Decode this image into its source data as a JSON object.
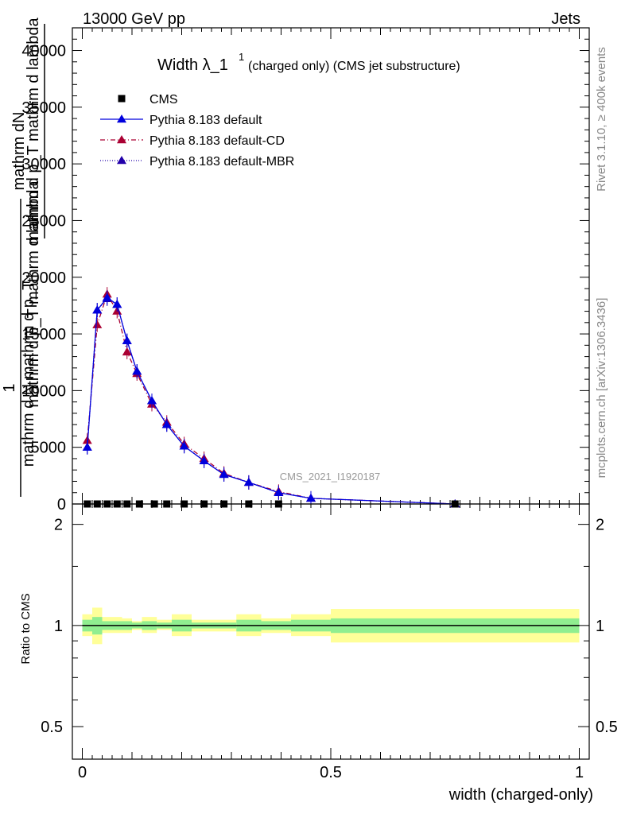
{
  "header": {
    "energy_label": "13000 GeV pp",
    "category_label": "Jets",
    "analysis_id": "CMS_2021_I1920187",
    "side_label_top": "Rivet 3.1.10, ≥ 400k events",
    "side_label_bottom": "mcplots.cern.ch [arXiv:1306.3436]"
  },
  "main_plot": {
    "title_main": "Width λ_1",
    "title_sup": "1",
    "title_sub": "(charged only) (CMS jet substructure)",
    "ylabel_line1": "mathrm dN",
    "ylabel_line2": "mathrm d p_T mathrm d lambda",
    "ylabel_line3": "1",
    "ylabel_line4": "mathrm d N mathrm d p_T",
    "ylabel_line5": "mathrm d p_T mathrm d lambda"
  },
  "legend": [
    {
      "label": "CMS",
      "color": "#000000",
      "marker": "square",
      "line": "none"
    },
    {
      "label": "Pythia 8.183 default",
      "color": "#0000dd",
      "marker": "triangle",
      "line": "solid"
    },
    {
      "label": "Pythia 8.183 default-CD",
      "color": "#aa0033",
      "marker": "triangle",
      "line": "dashdot"
    },
    {
      "label": "Pythia 8.183 default-MBR",
      "color": "#2200aa",
      "marker": "triangle",
      "line": "dotted"
    }
  ],
  "ratio_plot": {
    "ylabel": "Ratio to CMS",
    "xlabel": "width (charged-only)"
  },
  "chart_data": [
    {
      "type": "line",
      "title": "Width λ_1^1 (charged only) (CMS jet substructure)",
      "xlabel": "width (charged-only)",
      "ylabel": "1/(dN/dpT) d²N/(dpT dλ)",
      "xlim": [
        -0.02,
        1.02
      ],
      "ylim": [
        0,
        42000
      ],
      "x_ticks": [
        0,
        0.5,
        1
      ],
      "x_tick_labels": [
        "0",
        "0.5",
        "1"
      ],
      "y_ticks": [
        0,
        5000,
        10000,
        15000,
        20000,
        25000,
        30000,
        35000,
        40000
      ],
      "y_tick_labels": [
        "0",
        "5000",
        "10000",
        "15000",
        "20000",
        "25000",
        "30000",
        "35000",
        "40000"
      ],
      "series": [
        {
          "name": "CMS",
          "x": [
            0.01,
            0.03,
            0.05,
            0.07,
            0.09,
            0.115,
            0.145,
            0.17,
            0.205,
            0.245,
            0.285,
            0.335,
            0.395,
            0.75
          ],
          "values": [
            0,
            0,
            0,
            0,
            0,
            0,
            0,
            0,
            0,
            0,
            0,
            0,
            0,
            0
          ]
        },
        {
          "name": "Pythia 8.183 default",
          "x": [
            0.01,
            0.03,
            0.05,
            0.07,
            0.09,
            0.11,
            0.14,
            0.17,
            0.205,
            0.245,
            0.285,
            0.335,
            0.395,
            0.46,
            0.75
          ],
          "values": [
            5000,
            17100,
            18200,
            17600,
            14400,
            11700,
            9100,
            7000,
            5100,
            3800,
            2600,
            1900,
            1000,
            500,
            0
          ]
        },
        {
          "name": "Pythia 8.183 default-CD",
          "x": [
            0.01,
            0.03,
            0.05,
            0.07,
            0.09,
            0.11,
            0.14,
            0.17,
            0.205,
            0.245,
            0.285,
            0.335,
            0.395,
            0.46,
            0.75
          ],
          "values": [
            5600,
            15800,
            18500,
            17000,
            13400,
            11500,
            8800,
            7200,
            5300,
            4000,
            2700,
            1900,
            1100,
            500,
            0
          ]
        },
        {
          "name": "Pythia 8.183 default-MBR",
          "x": [
            0.01,
            0.03,
            0.05,
            0.07,
            0.09,
            0.11,
            0.14,
            0.17,
            0.205,
            0.245,
            0.285,
            0.335,
            0.395,
            0.46,
            0.75
          ],
          "values": [
            5000,
            17100,
            18100,
            17600,
            14400,
            11700,
            9100,
            7000,
            5100,
            3800,
            2600,
            1900,
            1000,
            500,
            0
          ]
        }
      ]
    },
    {
      "type": "area",
      "title": "",
      "xlabel": "width (charged-only)",
      "ylabel": "Ratio to CMS",
      "xlim": [
        -0.02,
        1.02
      ],
      "ylim": [
        0.4,
        2.3
      ],
      "y_scale": "log",
      "x_ticks": [
        0,
        0.5,
        1
      ],
      "x_tick_labels": [
        "0",
        "0.5",
        "1"
      ],
      "y_ticks": [
        0.5,
        1,
        2
      ],
      "y_tick_labels": [
        "0.5",
        "1",
        "2"
      ],
      "bins": [
        {
          "lo": 0.0,
          "hi": 0.02,
          "inner": [
            0.96,
            1.04
          ],
          "outer": [
            0.93,
            1.08
          ]
        },
        {
          "lo": 0.02,
          "hi": 0.04,
          "inner": [
            0.94,
            1.06
          ],
          "outer": [
            0.88,
            1.13
          ]
        },
        {
          "lo": 0.04,
          "hi": 0.06,
          "inner": [
            0.97,
            1.03
          ],
          "outer": [
            0.95,
            1.06
          ]
        },
        {
          "lo": 0.06,
          "hi": 0.08,
          "inner": [
            0.97,
            1.03
          ],
          "outer": [
            0.95,
            1.06
          ]
        },
        {
          "lo": 0.08,
          "hi": 0.1,
          "inner": [
            0.97,
            1.03
          ],
          "outer": [
            0.95,
            1.05
          ]
        },
        {
          "lo": 0.1,
          "hi": 0.12,
          "inner": [
            0.98,
            1.02
          ],
          "outer": [
            0.97,
            1.03
          ]
        },
        {
          "lo": 0.12,
          "hi": 0.15,
          "inner": [
            0.97,
            1.03
          ],
          "outer": [
            0.95,
            1.06
          ]
        },
        {
          "lo": 0.15,
          "hi": 0.18,
          "inner": [
            0.98,
            1.02
          ],
          "outer": [
            0.97,
            1.04
          ]
        },
        {
          "lo": 0.18,
          "hi": 0.22,
          "inner": [
            0.96,
            1.04
          ],
          "outer": [
            0.93,
            1.08
          ]
        },
        {
          "lo": 0.22,
          "hi": 0.26,
          "inner": [
            0.98,
            1.02
          ],
          "outer": [
            0.96,
            1.04
          ]
        },
        {
          "lo": 0.26,
          "hi": 0.31,
          "inner": [
            0.98,
            1.02
          ],
          "outer": [
            0.96,
            1.04
          ]
        },
        {
          "lo": 0.31,
          "hi": 0.36,
          "inner": [
            0.96,
            1.04
          ],
          "outer": [
            0.93,
            1.08
          ]
        },
        {
          "lo": 0.36,
          "hi": 0.42,
          "inner": [
            0.97,
            1.03
          ],
          "outer": [
            0.95,
            1.05
          ]
        },
        {
          "lo": 0.42,
          "hi": 0.5,
          "inner": [
            0.96,
            1.04
          ],
          "outer": [
            0.93,
            1.08
          ]
        },
        {
          "lo": 0.5,
          "hi": 1.0,
          "inner": [
            0.95,
            1.05
          ],
          "outer": [
            0.89,
            1.12
          ]
        }
      ],
      "reference_line": 1
    }
  ],
  "colors": {
    "band_inner": "#90ee90",
    "band_outer": "#ffff99",
    "side_text": "#888888",
    "watermark": "#999999"
  }
}
